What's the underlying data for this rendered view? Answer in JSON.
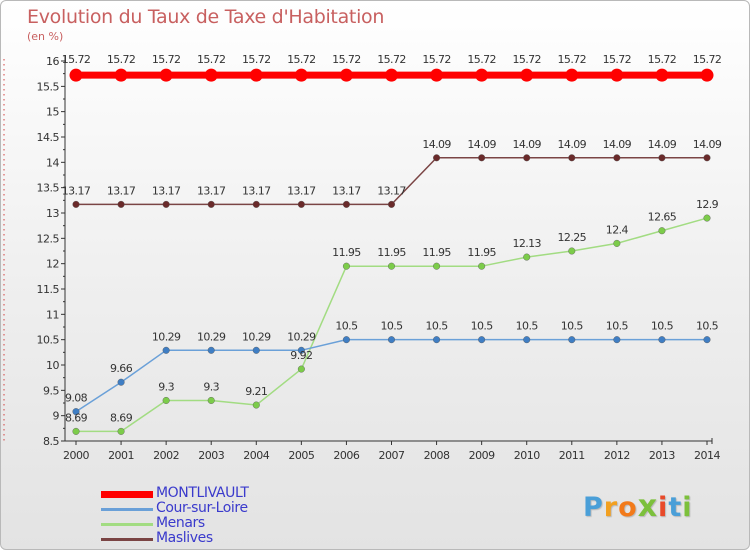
{
  "chart_title": "Evolution du Taux de Taxe d'Habitation",
  "chart_subtitle": "(en %)",
  "logo": {
    "letters": [
      "P",
      "r",
      "o",
      "x",
      "i",
      "t",
      "i"
    ],
    "colors": [
      "#4a9fd8",
      "#f2a020",
      "#f27a1a",
      "#7cc03c",
      "#e84a2a",
      "#4a9fd8",
      "#7cc03c"
    ]
  },
  "chart_data": {
    "type": "line",
    "title": "Evolution du Taux de Taxe d'Habitation",
    "ylabel": "(en %)",
    "xlabel": "",
    "ylim": [
      8.5,
      16
    ],
    "yticks": [
      "8.5",
      "9",
      "9.5",
      "10",
      "10.5",
      "11",
      "11.5",
      "12",
      "12.5",
      "13",
      "13.5",
      "14",
      "14.5",
      "15",
      "15.5",
      "16"
    ],
    "x": [
      "2000",
      "2001",
      "2002",
      "2003",
      "2004",
      "2005",
      "2006",
      "2007",
      "2008",
      "2009",
      "2010",
      "2011",
      "2012",
      "2013",
      "2014"
    ],
    "grid": false,
    "legend_position": "bottom-left",
    "series": [
      {
        "name": "MONTLIVAULT",
        "color": "#ff0000",
        "dot_color": "#ff0000",
        "values": [
          15.72,
          15.72,
          15.72,
          15.72,
          15.72,
          15.72,
          15.72,
          15.72,
          15.72,
          15.72,
          15.72,
          15.72,
          15.72,
          15.72,
          15.72
        ],
        "labels": [
          "15.72",
          "15.72",
          "15.72",
          "15.72",
          "15.72",
          "15.72",
          "15.72",
          "15.72",
          "15.72",
          "15.72",
          "15.72",
          "15.72",
          "15.72",
          "15.72",
          "15.72"
        ]
      },
      {
        "name": "Cour-sur-Loire",
        "color": "#6aa0d8",
        "dot_color": "#3f7ec4",
        "values": [
          9.08,
          9.66,
          10.29,
          10.29,
          10.29,
          10.29,
          10.5,
          10.5,
          10.5,
          10.5,
          10.5,
          10.5,
          10.5,
          10.5,
          10.5
        ],
        "labels": [
          "9.08",
          "9.66",
          "10.29",
          "10.29",
          "10.29",
          "10.29",
          "10.5",
          "10.5",
          "10.5",
          "10.5",
          "10.5",
          "10.5",
          "10.5",
          "10.5",
          "10.5"
        ]
      },
      {
        "name": "Menars",
        "color": "#a2dc82",
        "dot_color": "#7ccc4a",
        "values": [
          8.69,
          8.69,
          9.3,
          9.3,
          9.21,
          9.92,
          11.95,
          11.95,
          11.95,
          11.95,
          12.13,
          12.25,
          12.4,
          12.65,
          12.9
        ],
        "labels": [
          "8.69",
          "8.69",
          "9.3",
          "9.3",
          "9.21",
          "9.92",
          "11.95",
          "11.95",
          "11.95",
          "11.95",
          "12.13",
          "12.25",
          "12.4",
          "12.65",
          "12.9"
        ]
      },
      {
        "name": "Maslives",
        "color": "#7a4444",
        "dot_color": "#6a2a2a",
        "values": [
          13.17,
          13.17,
          13.17,
          13.17,
          13.17,
          13.17,
          13.17,
          13.17,
          14.09,
          14.09,
          14.09,
          14.09,
          14.09,
          14.09,
          14.09
        ],
        "labels": [
          "13.17",
          "13.17",
          "13.17",
          "13.17",
          "13.17",
          "13.17",
          "13.17",
          "13.17",
          "14.09",
          "14.09",
          "14.09",
          "14.09",
          "14.09",
          "14.09",
          "14.09"
        ]
      }
    ]
  }
}
